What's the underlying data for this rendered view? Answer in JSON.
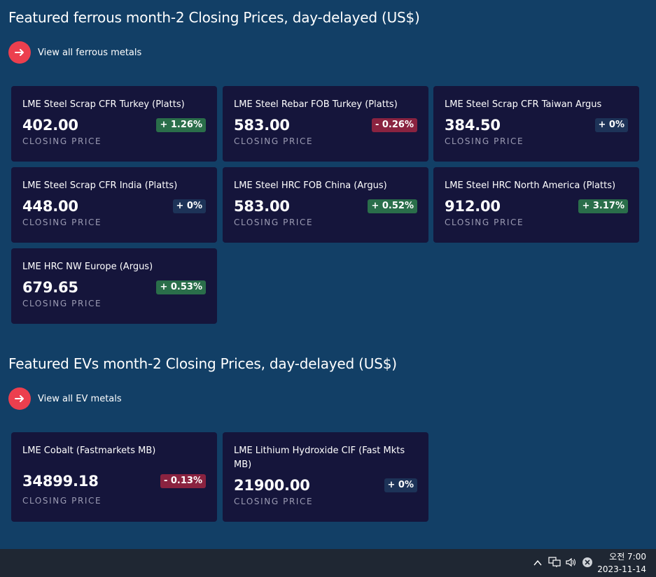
{
  "ferrous": {
    "title": "Featured ferrous month-2 Closing Prices, day-delayed (US$)",
    "view_all": "View all ferrous metals",
    "closing_label": "CLOSING PRICE",
    "cards": [
      {
        "name": "LME Steel Scrap CFR Turkey (Platts)",
        "price": "402.00",
        "change": "+ 1.26%",
        "trend": "up"
      },
      {
        "name": "LME Steel Rebar FOB Turkey (Platts)",
        "price": "583.00",
        "change": "- 0.26%",
        "trend": "down"
      },
      {
        "name": "LME Steel Scrap CFR Taiwan Argus",
        "price": "384.50",
        "change": "+ 0%",
        "trend": "flat"
      },
      {
        "name": "LME Steel Scrap CFR India (Platts)",
        "price": "448.00",
        "change": "+ 0%",
        "trend": "flat"
      },
      {
        "name": "LME Steel HRC FOB China (Argus)",
        "price": "583.00",
        "change": "+ 0.52%",
        "trend": "up"
      },
      {
        "name": "LME Steel HRC North America (Platts)",
        "price": "912.00",
        "change": "+ 3.17%",
        "trend": "up"
      },
      {
        "name": "LME HRC NW Europe (Argus)",
        "price": "679.65",
        "change": "+ 0.53%",
        "trend": "up"
      }
    ]
  },
  "ev": {
    "title": "Featured EVs month-2 Closing Prices, day-delayed (US$)",
    "view_all": "View all EV metals",
    "closing_label": "CLOSING PRICE",
    "cards": [
      {
        "name": "LME Cobalt (Fastmarkets MB)",
        "price": "34899.18",
        "change": "- 0.13%",
        "trend": "down"
      },
      {
        "name": "LME Lithium Hydroxide CIF (Fast Mkts MB)",
        "price": "21900.00",
        "change": "+ 0%",
        "trend": "flat"
      }
    ]
  },
  "taskbar": {
    "time": "오전 7:00",
    "date": "2023-11-14",
    "icons": [
      "chevron-up-icon",
      "network-icon",
      "volume-icon",
      "close-circle-icon"
    ]
  },
  "colors": {
    "background": "#123f66",
    "card": "#15153b",
    "accent": "#ec3f4e",
    "up": "#2a6e4a",
    "down": "#8a2340",
    "flat": "#1d3358"
  }
}
